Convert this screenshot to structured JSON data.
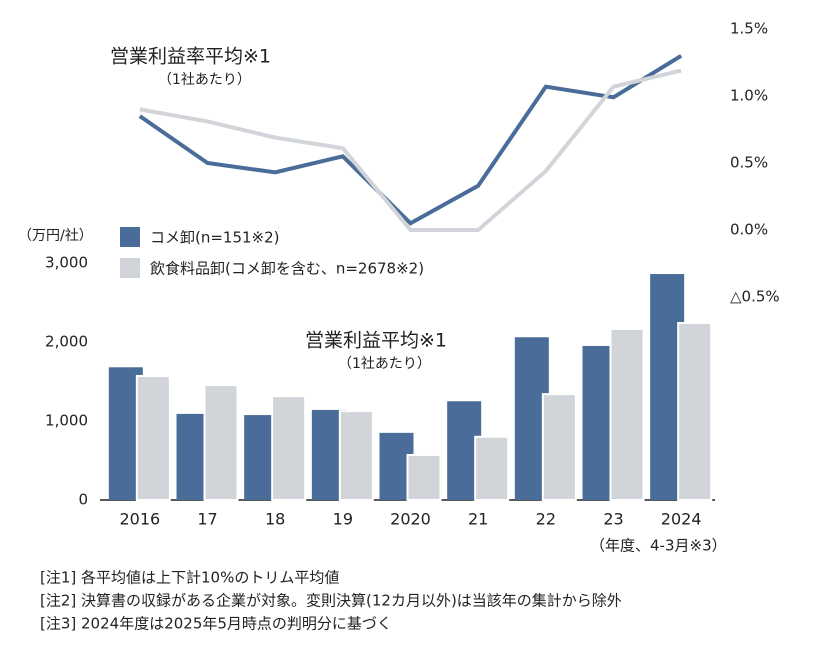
{
  "chart_data": [
    {
      "type": "line",
      "title": "営業利益率平均※1",
      "subtitle": "（1社あたり）",
      "y_axis_side": "right",
      "ylim": [
        -0.5,
        1.5
      ],
      "yticks": [
        {
          "value": -0.5,
          "label": "△0.5%"
        },
        {
          "value": 0,
          "label": "0.0%"
        },
        {
          "value": 0.5,
          "label": "0.5%"
        },
        {
          "value": 1.0,
          "label": "1.0%"
        },
        {
          "value": 1.5,
          "label": "1.5%"
        }
      ],
      "series": [
        {
          "color": "#4a6c98",
          "values": [
            0.85,
            0.5,
            0.43,
            0.55,
            0.05,
            0.33,
            1.07,
            0.99,
            1.3
          ]
        },
        {
          "color": "#d1d5d9",
          "values": [
            0.9,
            0.81,
            0.69,
            0.61,
            0,
            0,
            0.44,
            1.07,
            1.19
          ]
        }
      ]
    },
    {
      "type": "bar",
      "title": "営業利益平均※1",
      "subtitle": "（1社あたり）",
      "y_label": "（万円/社）",
      "x_label": "（年度、4-3月※3）",
      "categories": [
        "2016",
        "17",
        "18",
        "19",
        "2020",
        "21",
        "22",
        "23",
        "2024"
      ],
      "ylim": [
        0,
        3000
      ],
      "yticks": [
        0,
        {
          "value": 1000,
          "label": "1,000"
        },
        {
          "value": 2000,
          "label": "2,000"
        },
        {
          "value": 3000,
          "label": "3,000"
        }
      ],
      "legend": "top-left",
      "series": [
        {
          "name": "コメ卸(n=151※2)",
          "color": "#4a6c98",
          "values": [
            1680,
            1090,
            1075,
            1140,
            850,
            1250,
            2060,
            1950,
            2860
          ]
        },
        {
          "name": "飲食料品卸(コメ卸を含む、n=2678※2)",
          "color": "#d1d5d9",
          "values": [
            1570,
            1455,
            1315,
            1125,
            570,
            800,
            1340,
            2165,
            2240
          ]
        }
      ]
    }
  ],
  "notes": [
    "[注1]  各平均値は上下計10%のトリム平均値",
    "[注2]  決算書の収録がある企業が対象。変則決算(12カ月以外)は当該年の集計から除外",
    "[注3]  2024年度は2025年5月時点の判明分に基づく"
  ]
}
